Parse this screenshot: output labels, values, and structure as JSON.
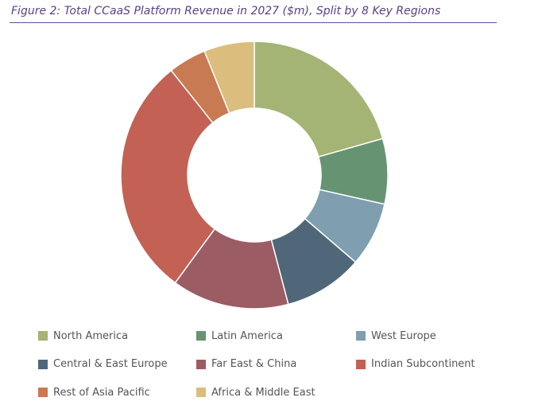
{
  "chart_data": {
    "type": "pie",
    "variant": "donut",
    "title": "Figure 2: Total CCaaS Platform Revenue in 2027 ($m), Split by 8 Key Regions",
    "unit": "$m",
    "legend_position": "bottom",
    "series": [
      {
        "name": "North America",
        "value": 20.6,
        "color": "#a4b474"
      },
      {
        "name": "Latin America",
        "value": 7.9,
        "color": "#669473"
      },
      {
        "name": "West Europe",
        "value": 7.8,
        "color": "#7f9eaf"
      },
      {
        "name": "Central & East Europe",
        "value": 9.6,
        "color": "#4f6779"
      },
      {
        "name": "Far East & China",
        "value": 14.2,
        "color": "#9c5c64"
      },
      {
        "name": "Indian Subcontinent",
        "value": 29.2,
        "color": "#c26154"
      },
      {
        "name": "Rest of Asia Pacific",
        "value": 4.6,
        "color": "#c87a52"
      },
      {
        "name": "Africa & Middle East",
        "value": 6.1,
        "color": "#dbbe7e"
      }
    ]
  }
}
